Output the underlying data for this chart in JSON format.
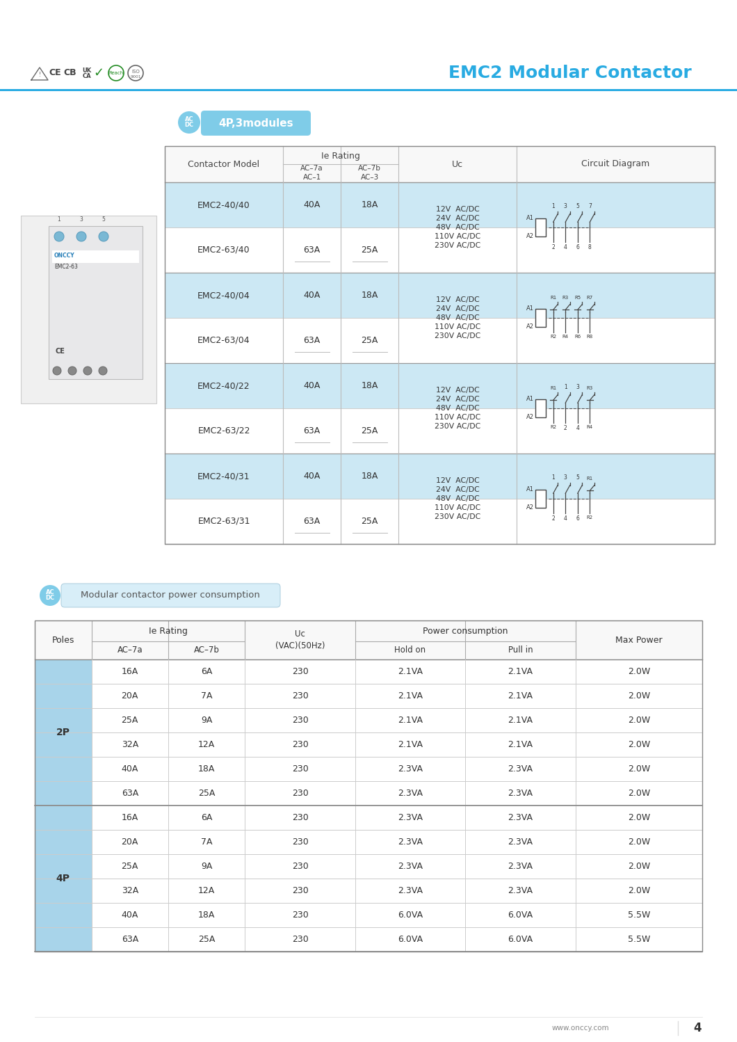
{
  "title": "EMC2 Modular Contactor",
  "title_color": "#29abe2",
  "header_line_color": "#29abe2",
  "page_number": "4",
  "website": "www.onccy.com",
  "section1_badge": "4P,3modules",
  "ac_dc_badge_color": "#7fcce8",
  "table1_pairs": [
    {
      "m1": "EMC2-40/40",
      "a1": "40A",
      "b1": "18A",
      "m2": "EMC2-63/40",
      "a2": "63A",
      "b2": "25A",
      "uc": "12V  AC/DC\n24V  AC/DC\n48V  AC/DC\n110V AC/DC\n230V AC/DC",
      "diag": "40"
    },
    {
      "m1": "EMC2-40/04",
      "a1": "40A",
      "b1": "18A",
      "m2": "EMC2-63/04",
      "a2": "63A",
      "b2": "25A",
      "uc": "12V  AC/DC\n24V  AC/DC\n48V  AC/DC\n110V AC/DC\n230V AC/DC",
      "diag": "04"
    },
    {
      "m1": "EMC2-40/22",
      "a1": "40A",
      "b1": "18A",
      "m2": "EMC2-63/22",
      "a2": "63A",
      "b2": "25A",
      "uc": "12V  AC/DC\n24V  AC/DC\n48V  AC/DC\n110V AC/DC\n230V AC/DC",
      "diag": "22"
    },
    {
      "m1": "EMC2-40/31",
      "a1": "40A",
      "b1": "18A",
      "m2": "EMC2-63/31",
      "a2": "63A",
      "b2": "25A",
      "uc": "12V  AC/DC\n24V  AC/DC\n48V  AC/DC\n110V AC/DC\n230V AC/DC",
      "diag": "31"
    }
  ],
  "table1_row_bg_blue": "#cce8f4",
  "table1_row_bg_white": "#ffffff",
  "table1_header_bg": "#f8f8f8",
  "table1_border_color": "#bbbbbb",
  "section2_badge": "Modular contactor power consumption",
  "section2_badge_bg": "#d8eef8",
  "table2_poles_bg": "#a8d4ea",
  "table2_border_color": "#aaaaaa",
  "table2_rows": [
    [
      "2P",
      "16A",
      "6A",
      "230",
      "2.1VA",
      "2.1VA",
      "2.0W"
    ],
    [
      "",
      "20A",
      "7A",
      "230",
      "2.1VA",
      "2.1VA",
      "2.0W"
    ],
    [
      "",
      "25A",
      "9A",
      "230",
      "2.1VA",
      "2.1VA",
      "2.0W"
    ],
    [
      "",
      "32A",
      "12A",
      "230",
      "2.1VA",
      "2.1VA",
      "2.0W"
    ],
    [
      "",
      "40A",
      "18A",
      "230",
      "2.3VA",
      "2.3VA",
      "2.0W"
    ],
    [
      "",
      "63A",
      "25A",
      "230",
      "2.3VA",
      "2.3VA",
      "2.0W"
    ],
    [
      "4P",
      "16A",
      "6A",
      "230",
      "2.3VA",
      "2.3VA",
      "2.0W"
    ],
    [
      "",
      "20A",
      "7A",
      "230",
      "2.3VA",
      "2.3VA",
      "2.0W"
    ],
    [
      "",
      "25A",
      "9A",
      "230",
      "2.3VA",
      "2.3VA",
      "2.0W"
    ],
    [
      "",
      "32A",
      "12A",
      "230",
      "2.3VA",
      "2.3VA",
      "2.0W"
    ],
    [
      "",
      "40A",
      "18A",
      "230",
      "6.0VA",
      "6.0VA",
      "5.5W"
    ],
    [
      "",
      "63A",
      "25A",
      "230",
      "6.0VA",
      "6.0VA",
      "5.5W"
    ]
  ]
}
